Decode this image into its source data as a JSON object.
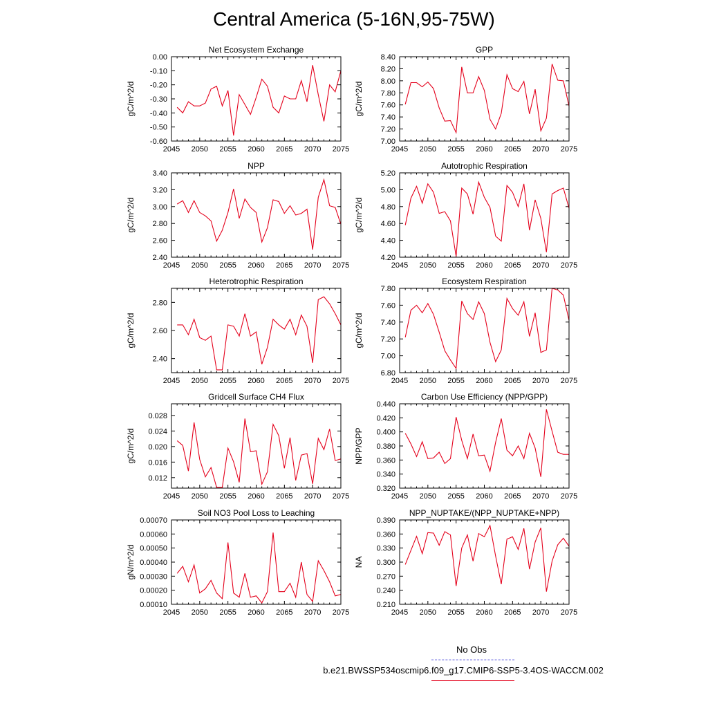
{
  "title": "Central America (5-16N,95-75W)",
  "legend": {
    "obs_label": "No Obs",
    "model_label": "b.e21.BWSSP534oscmip6.f09_g17.CMIP6-SSP5-3.4OS-WACCM.002",
    "obs_color": "#3b3bd6",
    "model_color": "#e4001b"
  },
  "chart_data": [
    {
      "type": "line",
      "title": "Net Ecosystem Exchange",
      "ylabel": "gC/m^2/d",
      "xlim": [
        2045,
        2075
      ],
      "ylim": [
        -0.6,
        0.0
      ],
      "xticks": [
        "2045",
        "2050",
        "2055",
        "2060",
        "2065",
        "2070",
        "2075"
      ],
      "yticks": [
        "-0.60",
        "-0.50",
        "-0.40",
        "-0.30",
        "-0.20",
        "-0.10",
        "0.00"
      ],
      "x": [
        2046,
        2047,
        2048,
        2049,
        2050,
        2051,
        2052,
        2053,
        2054,
        2055,
        2056,
        2057,
        2058,
        2059,
        2060,
        2061,
        2062,
        2063,
        2064,
        2065,
        2066,
        2067,
        2068,
        2069,
        2070,
        2071,
        2072,
        2073,
        2074,
        2075
      ],
      "series": [
        {
          "name": "b.e21.BWSSP534oscmip6.f09_g17.CMIP6-SSP5-3.4OS-WACCM.002",
          "values": [
            -0.36,
            -0.4,
            -0.32,
            -0.35,
            -0.35,
            -0.33,
            -0.23,
            -0.21,
            -0.35,
            -0.24,
            -0.56,
            -0.27,
            -0.34,
            -0.41,
            -0.29,
            -0.16,
            -0.21,
            -0.36,
            -0.4,
            -0.28,
            -0.3,
            -0.3,
            -0.17,
            -0.32,
            -0.06,
            -0.27,
            -0.46,
            -0.2,
            -0.25,
            -0.1
          ]
        }
      ]
    },
    {
      "type": "line",
      "title": "GPP",
      "ylabel": "gC/m^2/d",
      "xlim": [
        2045,
        2075
      ],
      "ylim": [
        7.0,
        8.4
      ],
      "xticks": [
        "2045",
        "2050",
        "2055",
        "2060",
        "2065",
        "2070",
        "2075"
      ],
      "yticks": [
        "7.00",
        "7.20",
        "7.40",
        "7.60",
        "7.80",
        "8.00",
        "8.20",
        "8.40"
      ],
      "x": [
        2046,
        2047,
        2048,
        2049,
        2050,
        2051,
        2052,
        2053,
        2054,
        2055,
        2056,
        2057,
        2058,
        2059,
        2060,
        2061,
        2062,
        2063,
        2064,
        2065,
        2066,
        2067,
        2068,
        2069,
        2070,
        2071,
        2072,
        2073,
        2074,
        2075
      ],
      "series": [
        {
          "name": "b.e21.BWSSP534oscmip6.f09_g17.CMIP6-SSP5-3.4OS-WACCM.002",
          "values": [
            7.61,
            7.97,
            7.97,
            7.9,
            7.98,
            7.87,
            7.55,
            7.33,
            7.34,
            7.14,
            8.23,
            7.8,
            7.8,
            8.07,
            7.84,
            7.36,
            7.2,
            7.46,
            8.1,
            7.87,
            7.82,
            7.99,
            7.45,
            7.86,
            7.17,
            7.38,
            8.28,
            8.01,
            8.0,
            7.58
          ]
        }
      ]
    },
    {
      "type": "line",
      "title": "NPP",
      "ylabel": "gC/m^2/d",
      "xlim": [
        2045,
        2075
      ],
      "ylim": [
        2.4,
        3.4
      ],
      "xticks": [
        "2045",
        "2050",
        "2055",
        "2060",
        "2065",
        "2070",
        "2075"
      ],
      "yticks": [
        "2.40",
        "2.60",
        "2.80",
        "3.00",
        "3.20",
        "3.40"
      ],
      "x": [
        2046,
        2047,
        2048,
        2049,
        2050,
        2051,
        2052,
        2053,
        2054,
        2055,
        2056,
        2057,
        2058,
        2059,
        2060,
        2061,
        2062,
        2063,
        2064,
        2065,
        2066,
        2067,
        2068,
        2069,
        2070,
        2071,
        2072,
        2073,
        2074,
        2075
      ],
      "series": [
        {
          "name": "b.e21.BWSSP534oscmip6.f09_g17.CMIP6-SSP5-3.4OS-WACCM.002",
          "values": [
            3.03,
            3.07,
            2.93,
            3.07,
            2.93,
            2.89,
            2.83,
            2.59,
            2.72,
            2.93,
            3.21,
            2.86,
            3.09,
            2.99,
            2.93,
            2.58,
            2.75,
            3.08,
            3.06,
            2.92,
            3.01,
            2.9,
            2.92,
            2.97,
            2.49,
            3.11,
            3.32,
            3.01,
            2.99,
            2.79
          ]
        }
      ]
    },
    {
      "type": "line",
      "title": "Autotrophic Respiration",
      "ylabel": "gC/m^2/d",
      "xlim": [
        2045,
        2075
      ],
      "ylim": [
        4.2,
        5.2
      ],
      "xticks": [
        "2045",
        "2050",
        "2055",
        "2060",
        "2065",
        "2070",
        "2075"
      ],
      "yticks": [
        "4.20",
        "4.40",
        "4.60",
        "4.80",
        "5.00",
        "5.20"
      ],
      "x": [
        2046,
        2047,
        2048,
        2049,
        2050,
        2051,
        2052,
        2053,
        2054,
        2055,
        2056,
        2057,
        2058,
        2059,
        2060,
        2061,
        2062,
        2063,
        2064,
        2065,
        2066,
        2067,
        2068,
        2069,
        2070,
        2071,
        2072,
        2073,
        2074,
        2075
      ],
      "series": [
        {
          "name": "b.e21.BWSSP534oscmip6.f09_g17.CMIP6-SSP5-3.4OS-WACCM.002",
          "values": [
            4.58,
            4.9,
            5.04,
            4.84,
            5.07,
            4.97,
            4.72,
            4.74,
            4.63,
            4.21,
            5.02,
            4.95,
            4.71,
            5.09,
            4.91,
            4.79,
            4.45,
            4.39,
            5.05,
            4.97,
            4.8,
            5.07,
            4.52,
            4.88,
            4.66,
            4.26,
            4.95,
            4.99,
            5.02,
            4.78
          ]
        }
      ]
    },
    {
      "type": "line",
      "title": "Heterotrophic Respiration",
      "ylabel": "gC/m^2/d",
      "xlim": [
        2045,
        2075
      ],
      "ylim": [
        2.3,
        2.9
      ],
      "xticks": [
        "2045",
        "2050",
        "2055",
        "2060",
        "2065",
        "2070",
        "2075"
      ],
      "yticks": [
        "2.40",
        "2.60",
        "2.80"
      ],
      "ytick_values": [
        2.4,
        2.6,
        2.8
      ],
      "x": [
        2046,
        2047,
        2048,
        2049,
        2050,
        2051,
        2052,
        2053,
        2054,
        2055,
        2056,
        2057,
        2058,
        2059,
        2060,
        2061,
        2062,
        2063,
        2064,
        2065,
        2066,
        2067,
        2068,
        2069,
        2070,
        2071,
        2072,
        2073,
        2074,
        2075
      ],
      "series": [
        {
          "name": "b.e21.BWSSP534oscmip6.f09_g17.CMIP6-SSP5-3.4OS-WACCM.002",
          "values": [
            2.64,
            2.64,
            2.57,
            2.68,
            2.55,
            2.53,
            2.56,
            2.32,
            2.32,
            2.64,
            2.63,
            2.56,
            2.72,
            2.56,
            2.59,
            2.36,
            2.48,
            2.68,
            2.64,
            2.61,
            2.68,
            2.57,
            2.71,
            2.63,
            2.37,
            2.82,
            2.84,
            2.79,
            2.72,
            2.64
          ]
        }
      ]
    },
    {
      "type": "line",
      "title": "Ecosystem Respiration",
      "ylabel": "gC/m^2/d",
      "xlim": [
        2045,
        2075
      ],
      "ylim": [
        6.8,
        7.8
      ],
      "xticks": [
        "2045",
        "2050",
        "2055",
        "2060",
        "2065",
        "2070",
        "2075"
      ],
      "yticks": [
        "6.80",
        "7.00",
        "7.20",
        "7.40",
        "7.60",
        "7.80"
      ],
      "x": [
        2046,
        2047,
        2048,
        2049,
        2050,
        2051,
        2052,
        2053,
        2054,
        2055,
        2056,
        2057,
        2058,
        2059,
        2060,
        2061,
        2062,
        2063,
        2064,
        2065,
        2066,
        2067,
        2068,
        2069,
        2070,
        2071,
        2072,
        2073,
        2074,
        2075
      ],
      "series": [
        {
          "name": "b.e21.BWSSP534oscmip6.f09_g17.CMIP6-SSP5-3.4OS-WACCM.002",
          "values": [
            7.22,
            7.54,
            7.6,
            7.51,
            7.62,
            7.49,
            7.28,
            7.06,
            6.95,
            6.85,
            7.65,
            7.5,
            7.43,
            7.64,
            7.5,
            7.16,
            6.93,
            7.07,
            7.68,
            7.56,
            7.48,
            7.64,
            7.23,
            7.51,
            7.04,
            7.07,
            7.8,
            7.78,
            7.72,
            7.42
          ]
        }
      ]
    },
    {
      "type": "line",
      "title": "Gridcell Surface CH4 Flux",
      "ylabel": "gC/m^2/d",
      "xlim": [
        2045,
        2075
      ],
      "ylim": [
        0.0093,
        0.031
      ],
      "xticks": [
        "2045",
        "2050",
        "2055",
        "2060",
        "2065",
        "2070",
        "2075"
      ],
      "yticks": [
        "0.012",
        "0.016",
        "0.020",
        "0.024",
        "0.028"
      ],
      "ytick_values": [
        0.012,
        0.016,
        0.02,
        0.024,
        0.028
      ],
      "x": [
        2046,
        2047,
        2048,
        2049,
        2050,
        2051,
        2052,
        2053,
        2054,
        2055,
        2056,
        2057,
        2058,
        2059,
        2060,
        2061,
        2062,
        2063,
        2064,
        2065,
        2066,
        2067,
        2068,
        2069,
        2070,
        2071,
        2072,
        2073,
        2074,
        2075
      ],
      "series": [
        {
          "name": "b.e21.BWSSP534oscmip6.f09_g17.CMIP6-SSP5-3.4OS-WACCM.002",
          "values": [
            0.0215,
            0.0203,
            0.0137,
            0.0262,
            0.0167,
            0.0122,
            0.0146,
            0.0095,
            0.0095,
            0.0196,
            0.0161,
            0.0108,
            0.0272,
            0.0187,
            0.0189,
            0.0103,
            0.0135,
            0.0257,
            0.0228,
            0.0144,
            0.0223,
            0.0113,
            0.0178,
            0.0182,
            0.0104,
            0.0221,
            0.0192,
            0.0245,
            0.0164,
            0.0168
          ]
        }
      ]
    },
    {
      "type": "line",
      "title": "Carbon Use Efficiency (NPP/GPP)",
      "ylabel": "NPP/GPP",
      "xlim": [
        2045,
        2075
      ],
      "ylim": [
        0.32,
        0.44
      ],
      "xticks": [
        "2045",
        "2050",
        "2055",
        "2060",
        "2065",
        "2070",
        "2075"
      ],
      "yticks": [
        "0.320",
        "0.340",
        "0.360",
        "0.380",
        "0.400",
        "0.420",
        "0.440"
      ],
      "x": [
        2046,
        2047,
        2048,
        2049,
        2050,
        2051,
        2052,
        2053,
        2054,
        2055,
        2056,
        2057,
        2058,
        2059,
        2060,
        2061,
        2062,
        2063,
        2064,
        2065,
        2066,
        2067,
        2068,
        2069,
        2070,
        2071,
        2072,
        2073,
        2074,
        2075
      ],
      "series": [
        {
          "name": "b.e21.BWSSP534oscmip6.f09_g17.CMIP6-SSP5-3.4OS-WACCM.002",
          "values": [
            0.398,
            0.383,
            0.365,
            0.386,
            0.362,
            0.363,
            0.371,
            0.355,
            0.362,
            0.421,
            0.388,
            0.362,
            0.397,
            0.366,
            0.367,
            0.344,
            0.385,
            0.419,
            0.374,
            0.366,
            0.38,
            0.362,
            0.398,
            0.377,
            0.336,
            0.432,
            0.401,
            0.371,
            0.368,
            0.368
          ]
        }
      ]
    },
    {
      "type": "line",
      "title": "Soil NO3 Pool Loss to Leaching",
      "ylabel": "gN/m^2/d",
      "xlim": [
        2045,
        2075
      ],
      "ylim": [
        0.0001,
        0.0007
      ],
      "xticks": [
        "2045",
        "2050",
        "2055",
        "2060",
        "2065",
        "2070",
        "2075"
      ],
      "yticks": [
        "0.00010",
        "0.00020",
        "0.00030",
        "0.00040",
        "0.00050",
        "0.00060",
        "0.00070"
      ],
      "x": [
        2046,
        2047,
        2048,
        2049,
        2050,
        2051,
        2052,
        2053,
        2054,
        2055,
        2056,
        2057,
        2058,
        2059,
        2060,
        2061,
        2062,
        2063,
        2064,
        2065,
        2066,
        2067,
        2068,
        2069,
        2070,
        2071,
        2072,
        2073,
        2074,
        2075
      ],
      "series": [
        {
          "name": "b.e21.BWSSP534oscmip6.f09_g17.CMIP6-SSP5-3.4OS-WACCM.002",
          "values": [
            0.00032,
            0.00037,
            0.00026,
            0.00038,
            0.00018,
            0.00021,
            0.00027,
            0.00018,
            0.00014,
            0.00054,
            0.00018,
            0.00015,
            0.00032,
            0.00015,
            0.00016,
            0.00011,
            0.00019,
            0.00061,
            0.00019,
            0.00019,
            0.00025,
            0.00015,
            0.0004,
            0.00017,
            0.00012,
            0.00041,
            0.00034,
            0.00026,
            0.00016,
            0.00017
          ]
        }
      ]
    },
    {
      "type": "line",
      "title": "NPP_NUPTAKE/(NPP_NUPTAKE+NPP)",
      "ylabel": "NA",
      "xlim": [
        2045,
        2075
      ],
      "ylim": [
        0.21,
        0.39
      ],
      "xticks": [
        "2045",
        "2050",
        "2055",
        "2060",
        "2065",
        "2070",
        "2075"
      ],
      "yticks": [
        "0.210",
        "0.240",
        "0.270",
        "0.300",
        "0.330",
        "0.360",
        "0.390"
      ],
      "x": [
        2046,
        2047,
        2048,
        2049,
        2050,
        2051,
        2052,
        2053,
        2054,
        2055,
        2056,
        2057,
        2058,
        2059,
        2060,
        2061,
        2062,
        2063,
        2064,
        2065,
        2066,
        2067,
        2068,
        2069,
        2070,
        2071,
        2072,
        2073,
        2074,
        2075
      ],
      "series": [
        {
          "name": "b.e21.BWSSP534oscmip6.f09_g17.CMIP6-SSP5-3.4OS-WACCM.002",
          "values": [
            0.295,
            0.325,
            0.355,
            0.318,
            0.363,
            0.362,
            0.336,
            0.365,
            0.358,
            0.249,
            0.33,
            0.358,
            0.302,
            0.361,
            0.354,
            0.378,
            0.313,
            0.253,
            0.349,
            0.354,
            0.327,
            0.372,
            0.285,
            0.343,
            0.373,
            0.237,
            0.302,
            0.337,
            0.351,
            0.334
          ]
        }
      ]
    }
  ]
}
